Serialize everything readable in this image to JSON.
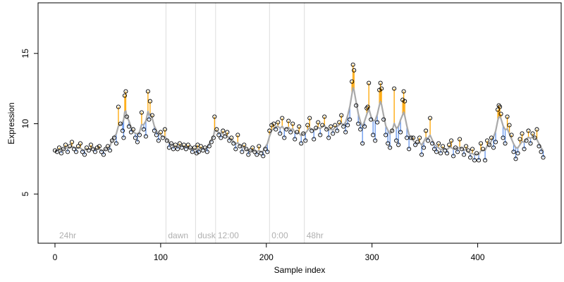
{
  "chart_data": {
    "type": "scatter",
    "title": "",
    "xlabel": "Sample index",
    "ylabel": "Expression",
    "xlim": [
      -16,
      479
    ],
    "ylim": [
      1.5,
      18.6
    ],
    "x_ticks": [
      0,
      100,
      200,
      300,
      400
    ],
    "y_ticks": [
      5,
      10,
      15
    ],
    "grid": false,
    "segment_dividers": [
      {
        "x": 105,
        "label": "dawn"
      },
      {
        "x": 133,
        "label": "dusk"
      },
      {
        "x": 152,
        "label": "12:00"
      },
      {
        "x": 203,
        "label": "0:00"
      },
      {
        "x": 236,
        "label": "48hr"
      }
    ],
    "segment_labels": [
      {
        "x": 2,
        "label": "24hr"
      }
    ],
    "series": [
      {
        "name": "",
        "role": "fitted",
        "color": "#a9a9a9",
        "note": "smoothed fitted curve"
      },
      {
        "name": "",
        "role": "observed",
        "color": "#000000",
        "note": "open-circle points"
      }
    ],
    "residual_colors": {
      "above": "#ffa500",
      "below": "#6495ed"
    },
    "observed_points": [
      [
        0,
        8.1
      ],
      [
        2,
        8.0
      ],
      [
        4,
        8.3
      ],
      [
        6,
        7.9
      ],
      [
        8,
        8.2
      ],
      [
        10,
        8.5
      ],
      [
        12,
        8.0
      ],
      [
        14,
        8.4
      ],
      [
        16,
        8.7
      ],
      [
        18,
        8.2
      ],
      [
        20,
        8.0
      ],
      [
        22,
        8.4
      ],
      [
        24,
        8.6
      ],
      [
        26,
        8.0
      ],
      [
        28,
        7.8
      ],
      [
        30,
        8.3
      ],
      [
        32,
        8.1
      ],
      [
        34,
        8.5
      ],
      [
        36,
        8.2
      ],
      [
        38,
        8.0
      ],
      [
        40,
        8.3
      ],
      [
        42,
        8.4
      ],
      [
        44,
        8.0
      ],
      [
        46,
        7.8
      ],
      [
        48,
        8.2
      ],
      [
        50,
        8.4
      ],
      [
        52,
        8.1
      ],
      [
        54,
        8.8
      ],
      [
        56,
        9.0
      ],
      [
        58,
        8.6
      ],
      [
        60,
        11.2
      ],
      [
        62,
        10.0
      ],
      [
        64,
        9.5
      ],
      [
        65,
        9.0
      ],
      [
        66,
        12.0
      ],
      [
        67,
        12.3
      ],
      [
        68,
        10.5
      ],
      [
        70,
        9.8
      ],
      [
        72,
        9.4
      ],
      [
        74,
        9.6
      ],
      [
        76,
        9.0
      ],
      [
        78,
        8.7
      ],
      [
        80,
        9.2
      ],
      [
        82,
        10.8
      ],
      [
        84,
        9.6
      ],
      [
        86,
        9.1
      ],
      [
        88,
        12.3
      ],
      [
        89,
        10.3
      ],
      [
        90,
        11.6
      ],
      [
        92,
        10.6
      ],
      [
        94,
        9.5
      ],
      [
        96,
        9.2
      ],
      [
        98,
        8.8
      ],
      [
        100,
        9.4
      ],
      [
        102,
        9.0
      ],
      [
        104,
        9.6
      ],
      [
        106,
        8.8
      ],
      [
        108,
        8.3
      ],
      [
        110,
        8.6
      ],
      [
        112,
        8.2
      ],
      [
        114,
        8.5
      ],
      [
        116,
        8.2
      ],
      [
        118,
        8.6
      ],
      [
        120,
        8.3
      ],
      [
        122,
        8.5
      ],
      [
        124,
        8.2
      ],
      [
        126,
        8.5
      ],
      [
        128,
        8.3
      ],
      [
        130,
        8.0
      ],
      [
        132,
        8.3
      ],
      [
        134,
        7.9
      ],
      [
        135,
        8.5
      ],
      [
        136,
        8.0
      ],
      [
        138,
        8.4
      ],
      [
        140,
        8.1
      ],
      [
        142,
        8.3
      ],
      [
        144,
        8.0
      ],
      [
        146,
        8.4
      ],
      [
        148,
        8.7
      ],
      [
        150,
        9.0
      ],
      [
        151,
        10.5
      ],
      [
        153,
        9.6
      ],
      [
        155,
        9.2
      ],
      [
        157,
        9.0
      ],
      [
        159,
        9.5
      ],
      [
        161,
        9.1
      ],
      [
        163,
        9.4
      ],
      [
        165,
        8.8
      ],
      [
        167,
        9.0
      ],
      [
        169,
        8.6
      ],
      [
        171,
        8.2
      ],
      [
        173,
        9.2
      ],
      [
        175,
        8.4
      ],
      [
        177,
        8.0
      ],
      [
        179,
        8.5
      ],
      [
        181,
        8.2
      ],
      [
        183,
        7.8
      ],
      [
        185,
        8.1
      ],
      [
        187,
        8.3
      ],
      [
        189,
        8.0
      ],
      [
        191,
        7.8
      ],
      [
        193,
        8.4
      ],
      [
        195,
        7.9
      ],
      [
        197,
        7.7
      ],
      [
        199,
        8.2
      ],
      [
        201,
        8.0
      ],
      [
        203,
        9.5
      ],
      [
        205,
        9.9
      ],
      [
        207,
        10.0
      ],
      [
        209,
        9.6
      ],
      [
        211,
        10.1
      ],
      [
        213,
        9.3
      ],
      [
        215,
        10.4
      ],
      [
        217,
        9.0
      ],
      [
        219,
        9.6
      ],
      [
        221,
        10.2
      ],
      [
        223,
        9.4
      ],
      [
        225,
        10.0
      ],
      [
        227,
        8.9
      ],
      [
        229,
        9.4
      ],
      [
        231,
        9.8
      ],
      [
        233,
        8.6
      ],
      [
        235,
        9.3
      ],
      [
        237,
        8.8
      ],
      [
        239,
        9.9
      ],
      [
        241,
        10.4
      ],
      [
        243,
        9.5
      ],
      [
        245,
        8.9
      ],
      [
        247,
        9.7
      ],
      [
        249,
        10.1
      ],
      [
        251,
        9.2
      ],
      [
        253,
        9.9
      ],
      [
        255,
        10.5
      ],
      [
        257,
        9.6
      ],
      [
        259,
        9.0
      ],
      [
        261,
        9.8
      ],
      [
        263,
        9.3
      ],
      [
        265,
        9.9
      ],
      [
        267,
        9.5
      ],
      [
        269,
        10.1
      ],
      [
        271,
        10.6
      ],
      [
        273,
        9.8
      ],
      [
        275,
        9.4
      ],
      [
        277,
        9.9
      ],
      [
        279,
        10.3
      ],
      [
        281,
        13.0
      ],
      [
        282,
        14.2
      ],
      [
        283,
        13.8
      ],
      [
        285,
        11.3
      ],
      [
        287,
        10.0
      ],
      [
        289,
        9.6
      ],
      [
        291,
        8.6
      ],
      [
        293,
        9.8
      ],
      [
        295,
        11.1
      ],
      [
        296,
        11.2
      ],
      [
        297,
        12.9
      ],
      [
        299,
        10.3
      ],
      [
        301,
        9.2
      ],
      [
        303,
        8.8
      ],
      [
        305,
        10.1
      ],
      [
        307,
        12.4
      ],
      [
        308,
        12.9
      ],
      [
        309,
        12.5
      ],
      [
        311,
        10.3
      ],
      [
        313,
        9.2
      ],
      [
        315,
        8.6
      ],
      [
        317,
        8.3
      ],
      [
        319,
        9.5
      ],
      [
        321,
        12.5
      ],
      [
        323,
        8.8
      ],
      [
        325,
        8.5
      ],
      [
        327,
        9.4
      ],
      [
        329,
        11.7
      ],
      [
        330,
        12.3
      ],
      [
        331,
        11.6
      ],
      [
        333,
        9.0
      ],
      [
        335,
        8.2
      ],
      [
        337,
        9.0
      ],
      [
        339,
        9.0
      ],
      [
        341,
        8.5
      ],
      [
        343,
        8.7
      ],
      [
        345,
        9.0
      ],
      [
        347,
        7.8
      ],
      [
        349,
        8.3
      ],
      [
        351,
        9.5
      ],
      [
        353,
        8.8
      ],
      [
        355,
        10.4
      ],
      [
        357,
        8.6
      ],
      [
        359,
        8.2
      ],
      [
        361,
        8.0
      ],
      [
        363,
        8.6
      ],
      [
        365,
        7.9
      ],
      [
        367,
        8.4
      ],
      [
        369,
        8.1
      ],
      [
        371,
        7.9
      ],
      [
        373,
        8.5
      ],
      [
        375,
        8.8
      ],
      [
        377,
        7.7
      ],
      [
        379,
        8.3
      ],
      [
        381,
        8.0
      ],
      [
        383,
        8.9
      ],
      [
        385,
        8.2
      ],
      [
        387,
        7.8
      ],
      [
        389,
        8.4
      ],
      [
        391,
        8.1
      ],
      [
        393,
        7.6
      ],
      [
        395,
        8.2
      ],
      [
        397,
        7.4
      ],
      [
        399,
        7.9
      ],
      [
        401,
        7.4
      ],
      [
        403,
        8.6
      ],
      [
        405,
        8.2
      ],
      [
        407,
        7.4
      ],
      [
        409,
        8.8
      ],
      [
        411,
        8.5
      ],
      [
        413,
        9.0
      ],
      [
        415,
        8.3
      ],
      [
        417,
        8.7
      ],
      [
        419,
        11.0
      ],
      [
        420,
        11.3
      ],
      [
        421,
        11.2
      ],
      [
        422,
        10.7
      ],
      [
        424,
        9.0
      ],
      [
        426,
        8.6
      ],
      [
        428,
        10.5
      ],
      [
        430,
        9.9
      ],
      [
        432,
        9.2
      ],
      [
        434,
        8.0
      ],
      [
        436,
        7.5
      ],
      [
        438,
        7.9
      ],
      [
        440,
        8.9
      ],
      [
        442,
        9.3
      ],
      [
        444,
        8.2
      ],
      [
        446,
        8.8
      ],
      [
        448,
        9.5
      ],
      [
        450,
        8.6
      ],
      [
        452,
        9.3
      ],
      [
        454,
        9.0
      ],
      [
        456,
        9.6
      ],
      [
        458,
        8.4
      ],
      [
        460,
        8.0
      ],
      [
        462,
        7.6
      ]
    ]
  },
  "axes": {
    "x_title": "Sample index",
    "y_title": "Expression"
  }
}
